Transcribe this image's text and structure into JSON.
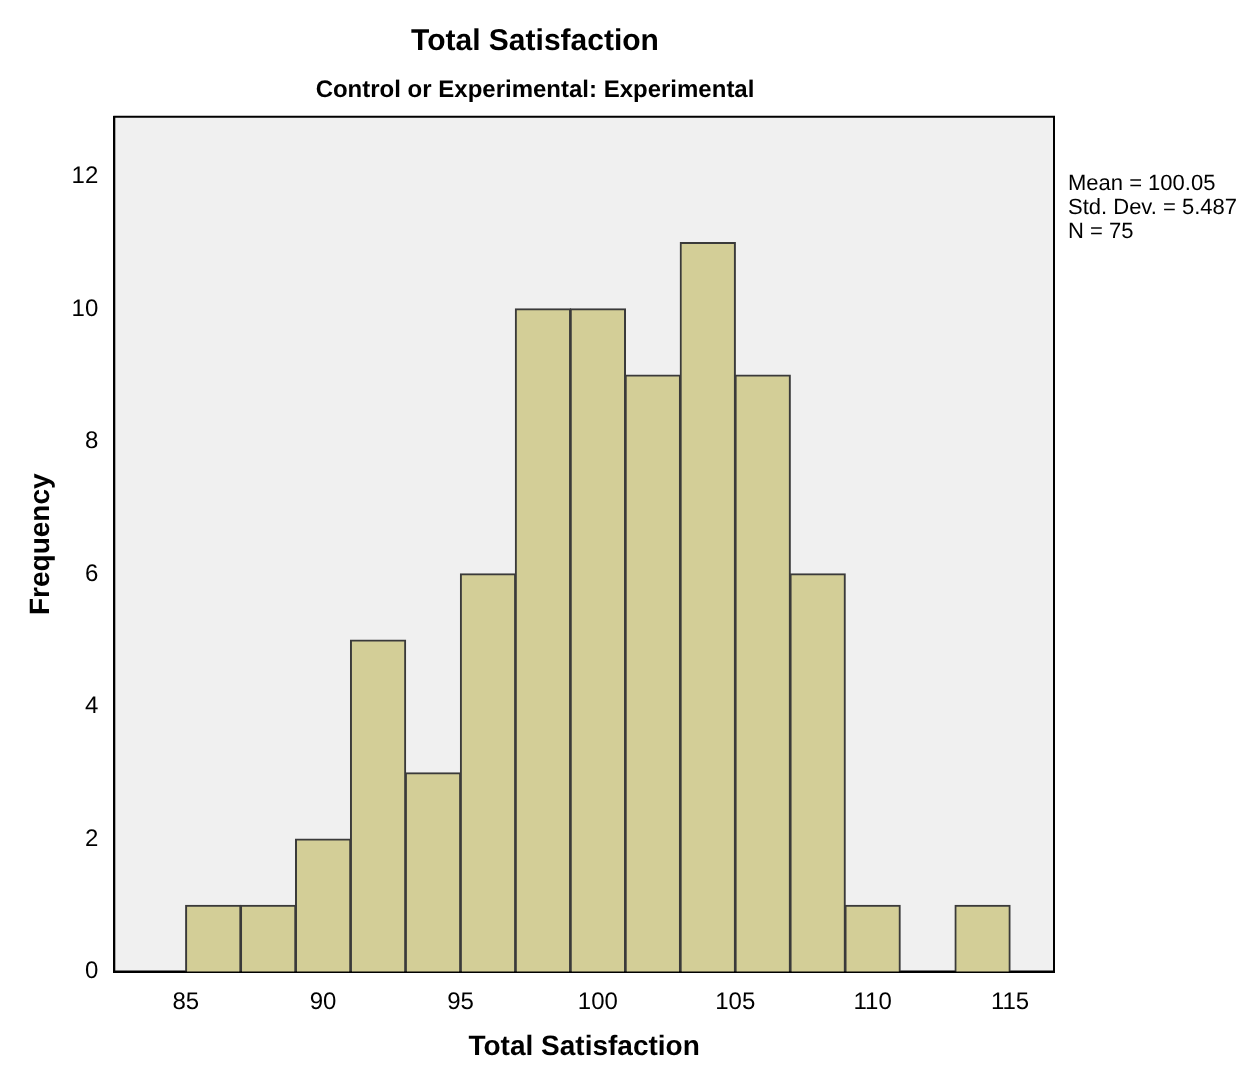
{
  "chart_data": {
    "type": "histogram",
    "title": "Total Satisfaction",
    "subtitle": "Control or Experimental: Experimental",
    "xlabel": "Total Satisfaction",
    "ylabel": "Frequency",
    "bins": [
      85,
      87,
      89,
      91,
      93,
      95,
      97,
      99,
      101,
      103,
      105,
      107,
      109,
      111,
      113,
      115
    ],
    "values": [
      1,
      1,
      2,
      5,
      3,
      6,
      10,
      10,
      9,
      11,
      9,
      6,
      1,
      0,
      1
    ],
    "color": "#d3ce97",
    "xlim": [
      82.4,
      116.6
    ],
    "xticks": [
      85,
      90,
      95,
      100,
      105,
      110,
      115
    ],
    "ylim": [
      0,
      12.9
    ],
    "yticks": [
      0,
      2,
      4,
      6,
      8,
      10,
      12
    ],
    "annotations": [
      "Mean = 100.05",
      "Std. Dev. = 5.487",
      "N = 75"
    ],
    "grid": false,
    "legend": false
  }
}
